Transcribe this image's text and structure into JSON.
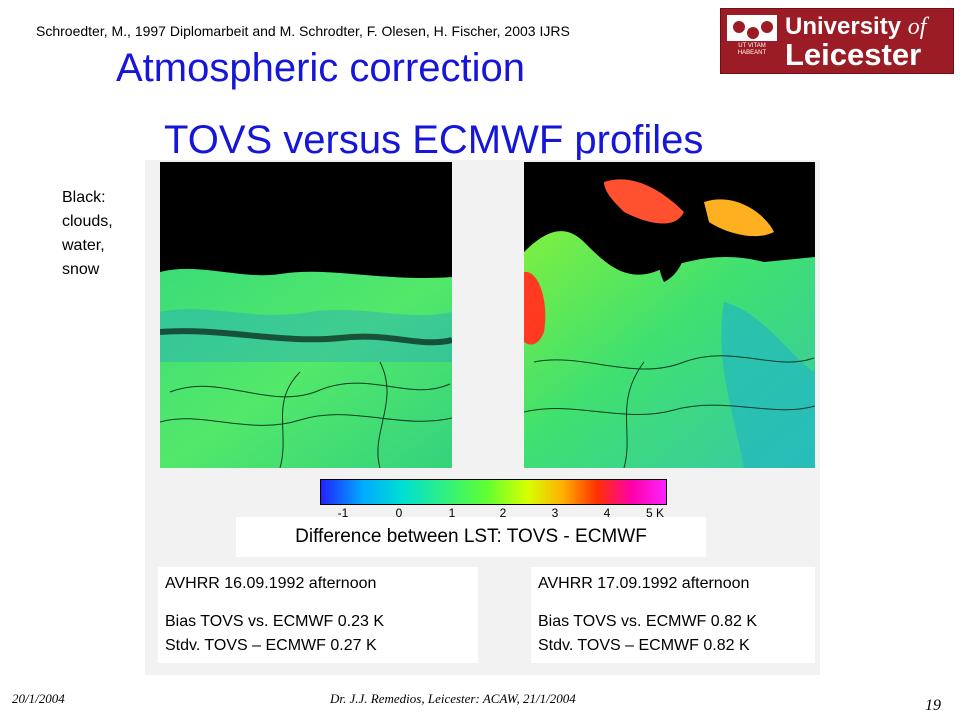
{
  "header": {
    "citation": "Schroedter, M., 1997 Diplomarbeit and M. Schrodter, F. Olesen, H. Fischer, 2003 IJRS",
    "title_line1": "Atmospheric correction",
    "title_line2": "TOVS versus ECMWF profiles",
    "title_color": "#1616d8"
  },
  "logo": {
    "line1_word": "University ",
    "line1_of": "of",
    "line2": "Leicester",
    "motto": "UT VITAM HABEANT",
    "background_color": "#9b1c25"
  },
  "side_note": [
    "Black:",
    "clouds,",
    "water,",
    "snow"
  ],
  "colorbar": {
    "ticks": [
      "-1",
      "0",
      "1",
      "2",
      "3",
      "4",
      "5 K"
    ]
  },
  "diff_caption": "Difference between LST: TOVS - ECMWF",
  "panels": [
    {
      "date_line": "AVHRR 16.09.1992 afternoon",
      "bias_line": "Bias TOVS vs. ECMWF 0.23 K",
      "stdv_line": "Stdv. TOVS – ECMWF 0.27 K"
    },
    {
      "date_line": "AVHRR 17.09.1992 afternoon",
      "bias_line": "Bias TOVS vs. ECMWF 0.82 K",
      "stdv_line": "Stdv. TOVS – ECMWF 0.82 K"
    }
  ],
  "footer": {
    "date": "20/1/2004",
    "center": "Dr. J.J. Remedios, Leicester: ACAW, 21/1/2004",
    "page": "19"
  }
}
